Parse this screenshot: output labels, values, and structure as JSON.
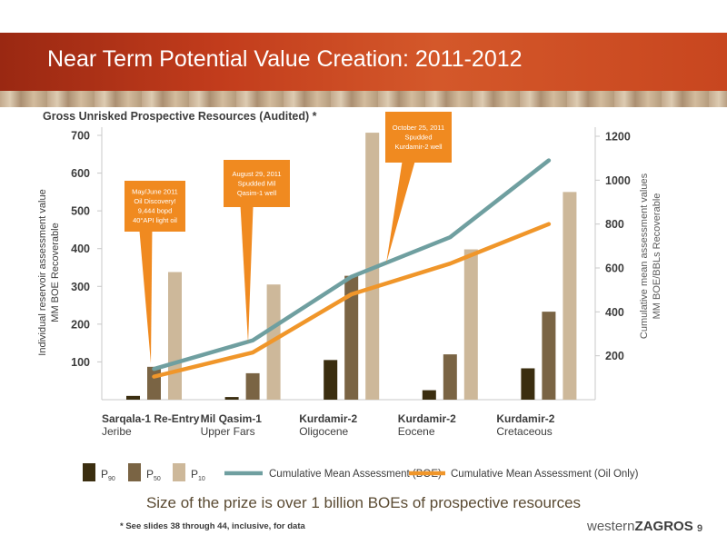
{
  "slide": {
    "title": "Near Term Potential Value Creation: 2011-2012",
    "subtitle": "Gross Unrisked Prospective Resources (Audited) *",
    "bottom_note": "Size of the prize is over 1 billion BOEs of prospective resources",
    "footnote": "* See slides 38 through 44, inclusive, for data",
    "logo_light": "western",
    "logo_bold": "ZAGROS",
    "page_number": "9"
  },
  "chart_data": {
    "type": "bar",
    "categories": [
      {
        "name": "Sarqala-1 Re-Entry",
        "sub": "Jeribe"
      },
      {
        "name": "Mil Qasim-1",
        "sub": "Upper Fars"
      },
      {
        "name": "Kurdamir-2",
        "sub": "Oligocene"
      },
      {
        "name": "Kurdamir-2",
        "sub": "Eocene"
      },
      {
        "name": "Kurdamir-2",
        "sub": "Cretaceous"
      }
    ],
    "series": [
      {
        "name": "P90",
        "label_main": "P",
        "label_sub": "90",
        "color": "#3b2e10",
        "values": [
          10,
          7,
          105,
          25,
          83
        ]
      },
      {
        "name": "P50",
        "label_main": "P",
        "label_sub": "50",
        "color": "#7a6444",
        "values": [
          87,
          70,
          328,
          120,
          233
        ]
      },
      {
        "name": "P10",
        "label_main": "P",
        "label_sub": "10",
        "color": "#cdb89a",
        "values": [
          338,
          305,
          707,
          398,
          550
        ]
      }
    ],
    "lines": [
      {
        "name": "Cumulative Mean Assessment (BOE)",
        "color": "#6f9fa0",
        "values": [
          140,
          270,
          560,
          740,
          1090
        ]
      },
      {
        "name": "Cumulative Mean Assessment (Oil Only)",
        "color": "#f0962a",
        "values": [
          105,
          215,
          480,
          620,
          800
        ]
      }
    ],
    "left_axis": {
      "label_line1": "Individual reservoir assessment value",
      "label_line2": "MM BOE Recoverable",
      "ylim": [
        0,
        700
      ],
      "ticks": [
        "100",
        "200",
        "300",
        "400",
        "500",
        "600",
        "700"
      ]
    },
    "right_axis": {
      "label_line1": "Cumulative mean assessment values",
      "label_line2": "MM BOE/BBLs Recoverable",
      "ylim": [
        0,
        1200
      ],
      "ticks": [
        "200",
        "400",
        "600",
        "800",
        "1000",
        "1200"
      ]
    },
    "annotations": [
      {
        "lines": [
          "May/June 2011",
          "Oil Discovery!",
          "9,444 bopd",
          "40°API light oil"
        ]
      },
      {
        "lines": [
          "August 29, 2011",
          "Spudded Mil",
          "Qasim-1 well"
        ]
      },
      {
        "lines": [
          "October 25, 2011",
          "Spudded",
          "Kurdamir-2 well"
        ]
      }
    ],
    "legend_position": "bottom"
  }
}
